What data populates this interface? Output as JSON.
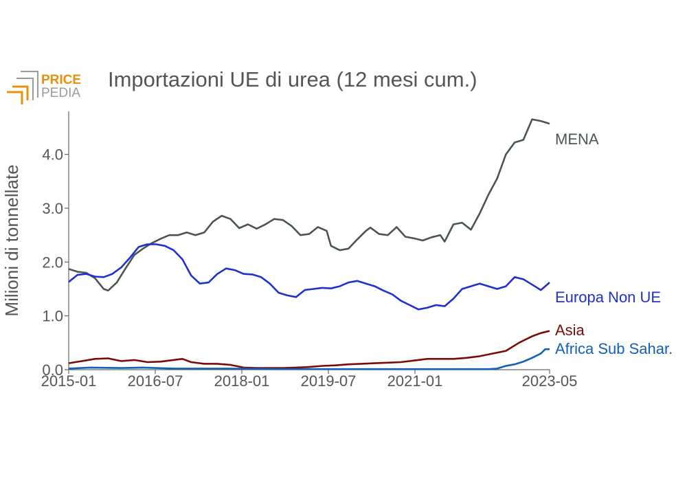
{
  "chart_data": {
    "type": "line",
    "title": "Importazioni UE di urea (12 mesi cum.)",
    "xlabel": "",
    "ylabel": "Milioni di tonnellate",
    "x_start": "2015-01",
    "x_end": "2023-05",
    "x_ticks": [
      "2015-01",
      "2016-07",
      "2018-01",
      "2019-07",
      "2021-01",
      "2023-05"
    ],
    "y_ticks": [
      "0.0",
      "1.0",
      "2.0",
      "3.0",
      "4.0"
    ],
    "ylim": [
      0,
      4.8
    ],
    "grid": false,
    "legend": "direct labels at right end of lines",
    "series": [
      {
        "name": "MENA",
        "color": "#4a5552",
        "points": [
          [
            "2015-01",
            1.87
          ],
          [
            "2015-03",
            1.82
          ],
          [
            "2015-05",
            1.8
          ],
          [
            "2015-07",
            1.7
          ],
          [
            "2015-09",
            1.5
          ],
          [
            "2015-10",
            1.47
          ],
          [
            "2015-12",
            1.62
          ],
          [
            "2016-02",
            1.88
          ],
          [
            "2016-04",
            2.13
          ],
          [
            "2016-06",
            2.25
          ],
          [
            "2016-08",
            2.35
          ],
          [
            "2016-10",
            2.43
          ],
          [
            "2016-12",
            2.5
          ],
          [
            "2017-02",
            2.5
          ],
          [
            "2017-04",
            2.55
          ],
          [
            "2017-06",
            2.5
          ],
          [
            "2017-08",
            2.55
          ],
          [
            "2017-10",
            2.75
          ],
          [
            "2017-12",
            2.86
          ],
          [
            "2018-02",
            2.8
          ],
          [
            "2018-04",
            2.63
          ],
          [
            "2018-06",
            2.7
          ],
          [
            "2018-08",
            2.62
          ],
          [
            "2018-10",
            2.7
          ],
          [
            "2018-12",
            2.8
          ],
          [
            "2019-02",
            2.78
          ],
          [
            "2019-04",
            2.67
          ],
          [
            "2019-06",
            2.5
          ],
          [
            "2019-08",
            2.52
          ],
          [
            "2019-10",
            2.65
          ],
          [
            "2019-12",
            2.58
          ],
          [
            "2020-01",
            2.3
          ],
          [
            "2020-03",
            2.22
          ],
          [
            "2020-05",
            2.25
          ],
          [
            "2020-07",
            2.42
          ],
          [
            "2020-09",
            2.58
          ],
          [
            "2020-10",
            2.64
          ],
          [
            "2020-12",
            2.52
          ],
          [
            "2021-02",
            2.5
          ],
          [
            "2021-04",
            2.65
          ],
          [
            "2021-06",
            2.47
          ],
          [
            "2021-08",
            2.44
          ],
          [
            "2021-10",
            2.4
          ],
          [
            "2021-12",
            2.46
          ],
          [
            "2022-02",
            2.5
          ],
          [
            "2022-03",
            2.38
          ],
          [
            "2022-05",
            2.7
          ],
          [
            "2022-07",
            2.73
          ],
          [
            "2022-09",
            2.6
          ],
          [
            "2022-11",
            2.9
          ],
          [
            "2023-01",
            3.25
          ],
          [
            "2023-03",
            3.55
          ],
          [
            "2023-05",
            4.0
          ],
          [
            "2023-07",
            4.22
          ],
          [
            "2023-09",
            4.27
          ],
          [
            "2023-11",
            4.65
          ],
          [
            "2024-01",
            4.62
          ],
          [
            "2024-03",
            4.57
          ]
        ]
      },
      {
        "name": "Europa Non UE",
        "color": "#1f2fd0",
        "points": [
          [
            "2015-01",
            1.63
          ],
          [
            "2015-03",
            1.76
          ],
          [
            "2015-05",
            1.78
          ],
          [
            "2015-07",
            1.73
          ],
          [
            "2015-09",
            1.72
          ],
          [
            "2015-11",
            1.78
          ],
          [
            "2016-01",
            1.9
          ],
          [
            "2016-03",
            2.08
          ],
          [
            "2016-05",
            2.28
          ],
          [
            "2016-07",
            2.33
          ],
          [
            "2016-09",
            2.33
          ],
          [
            "2016-11",
            2.3
          ],
          [
            "2017-01",
            2.22
          ],
          [
            "2017-03",
            2.05
          ],
          [
            "2017-05",
            1.75
          ],
          [
            "2017-07",
            1.6
          ],
          [
            "2017-09",
            1.62
          ],
          [
            "2017-11",
            1.78
          ],
          [
            "2018-01",
            1.88
          ],
          [
            "2018-03",
            1.85
          ],
          [
            "2018-05",
            1.78
          ],
          [
            "2018-07",
            1.77
          ],
          [
            "2018-09",
            1.72
          ],
          [
            "2018-11",
            1.6
          ],
          [
            "2019-01",
            1.43
          ],
          [
            "2019-03",
            1.38
          ],
          [
            "2019-05",
            1.35
          ],
          [
            "2019-07",
            1.48
          ],
          [
            "2019-09",
            1.5
          ],
          [
            "2019-11",
            1.52
          ],
          [
            "2020-01",
            1.51
          ],
          [
            "2020-03",
            1.55
          ],
          [
            "2020-05",
            1.62
          ],
          [
            "2020-07",
            1.65
          ],
          [
            "2020-09",
            1.6
          ],
          [
            "2020-11",
            1.55
          ],
          [
            "2021-01",
            1.47
          ],
          [
            "2021-03",
            1.4
          ],
          [
            "2021-05",
            1.28
          ],
          [
            "2021-07",
            1.2
          ],
          [
            "2021-09",
            1.12
          ],
          [
            "2021-11",
            1.15
          ],
          [
            "2022-01",
            1.2
          ],
          [
            "2022-03",
            1.18
          ],
          [
            "2022-05",
            1.32
          ],
          [
            "2022-07",
            1.5
          ],
          [
            "2022-09",
            1.55
          ],
          [
            "2022-11",
            1.6
          ],
          [
            "2023-01",
            1.55
          ],
          [
            "2023-03",
            1.5
          ],
          [
            "2023-05",
            1.55
          ],
          [
            "2023-07",
            1.72
          ],
          [
            "2023-09",
            1.68
          ],
          [
            "2023-11",
            1.58
          ],
          [
            "2024-01",
            1.48
          ],
          [
            "2024-03",
            1.62
          ]
        ]
      },
      {
        "name": "Asia",
        "color": "#7a0a0a",
        "points": [
          [
            "2015-01",
            0.12
          ],
          [
            "2015-04",
            0.16
          ],
          [
            "2015-07",
            0.2
          ],
          [
            "2015-10",
            0.21
          ],
          [
            "2016-01",
            0.16
          ],
          [
            "2016-04",
            0.18
          ],
          [
            "2016-07",
            0.14
          ],
          [
            "2016-10",
            0.15
          ],
          [
            "2017-01",
            0.18
          ],
          [
            "2017-03",
            0.2
          ],
          [
            "2017-05",
            0.14
          ],
          [
            "2017-08",
            0.11
          ],
          [
            "2017-11",
            0.11
          ],
          [
            "2018-02",
            0.09
          ],
          [
            "2018-05",
            0.04
          ],
          [
            "2018-08",
            0.03
          ],
          [
            "2018-11",
            0.03
          ],
          [
            "2019-02",
            0.03
          ],
          [
            "2019-05",
            0.04
          ],
          [
            "2019-08",
            0.05
          ],
          [
            "2019-11",
            0.07
          ],
          [
            "2020-02",
            0.08
          ],
          [
            "2020-05",
            0.1
          ],
          [
            "2020-08",
            0.11
          ],
          [
            "2020-11",
            0.12
          ],
          [
            "2021-02",
            0.13
          ],
          [
            "2021-05",
            0.14
          ],
          [
            "2021-08",
            0.17
          ],
          [
            "2021-11",
            0.2
          ],
          [
            "2022-02",
            0.2
          ],
          [
            "2022-05",
            0.2
          ],
          [
            "2022-08",
            0.22
          ],
          [
            "2022-11",
            0.25
          ],
          [
            "2023-02",
            0.3
          ],
          [
            "2023-05",
            0.35
          ],
          [
            "2023-08",
            0.5
          ],
          [
            "2023-11",
            0.62
          ],
          [
            "2024-01",
            0.68
          ],
          [
            "2024-03",
            0.72
          ]
        ]
      },
      {
        "name": "Africa Sub Sahar.",
        "color": "#1060b8",
        "points": [
          [
            "2015-01",
            0.02
          ],
          [
            "2015-06",
            0.04
          ],
          [
            "2016-01",
            0.03
          ],
          [
            "2016-06",
            0.04
          ],
          [
            "2017-01",
            0.02
          ],
          [
            "2017-06",
            0.02
          ],
          [
            "2018-01",
            0.02
          ],
          [
            "2019-01",
            0.01
          ],
          [
            "2020-01",
            0.01
          ],
          [
            "2021-01",
            0.01
          ],
          [
            "2022-01",
            0.01
          ],
          [
            "2023-01",
            0.01
          ],
          [
            "2023-03",
            0.02
          ],
          [
            "2023-05",
            0.07
          ],
          [
            "2023-07",
            0.1
          ],
          [
            "2023-09",
            0.15
          ],
          [
            "2023-11",
            0.22
          ],
          [
            "2024-01",
            0.3
          ],
          [
            "2024-02",
            0.38
          ],
          [
            "2024-03",
            0.38
          ]
        ]
      }
    ]
  },
  "logo": {
    "line1": "PRICE",
    "line2": "PEDIA",
    "color_accent": "#e8900c",
    "color_gray": "#9a9a9a"
  }
}
